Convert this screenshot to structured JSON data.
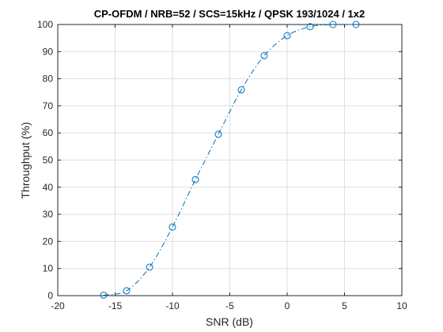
{
  "chart_data": {
    "type": "line",
    "title": "CP-OFDM / NRB=52 / SCS=15kHz / QPSK 193/1024 / 1x2",
    "xlabel": "SNR (dB)",
    "ylabel": "Throughput (%)",
    "xlim": [
      -20,
      10
    ],
    "ylim": [
      0,
      100
    ],
    "xticks": [
      -20,
      -15,
      -10,
      -5,
      0,
      5,
      10
    ],
    "yticks": [
      0,
      10,
      20,
      30,
      40,
      50,
      60,
      70,
      80,
      90,
      100
    ],
    "grid": true,
    "legend": "none",
    "line_style": "dash-dot",
    "marker": "circle",
    "series": [
      {
        "color": "#0072BD",
        "x": [
          -16,
          -14,
          -12,
          -10,
          -8,
          -6,
          -4,
          -2,
          0,
          2,
          4,
          6
        ],
        "y": [
          0.2,
          1.8,
          10.5,
          25.3,
          42.8,
          59.5,
          75.9,
          88.5,
          95.9,
          99.2,
          100,
          100
        ]
      }
    ]
  }
}
